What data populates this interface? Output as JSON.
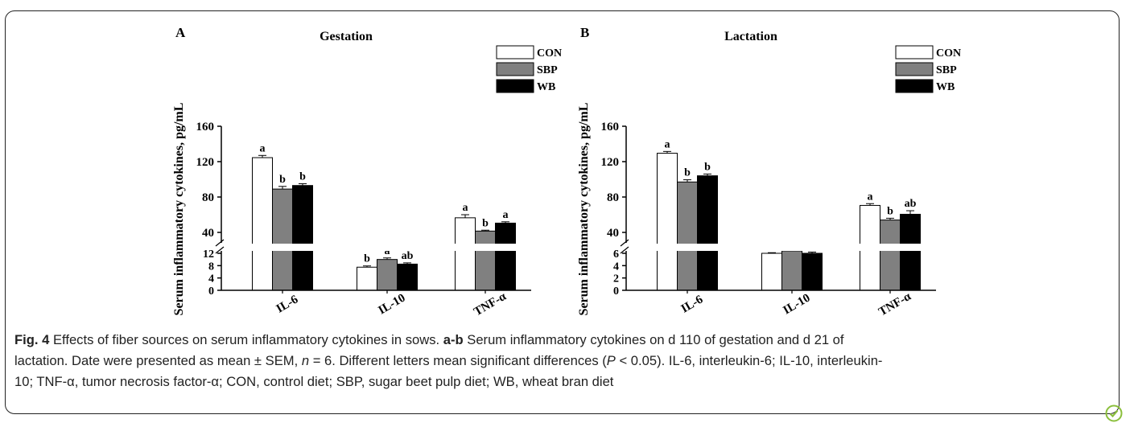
{
  "chart_data": [
    {
      "type": "bar",
      "panel_label": "A",
      "title": "Gestation",
      "ylabel": "Serum inflammatory cytokines, pg/mL",
      "categories": [
        "IL-6",
        "IL-10",
        "TNF-α"
      ],
      "axis_break": true,
      "lower_range": [
        0,
        12
      ],
      "lower_ticks": [
        "0",
        "4",
        "8",
        "12"
      ],
      "upper_range": [
        30,
        160
      ],
      "upper_ticks": [
        "40",
        "80",
        "120",
        "160"
      ],
      "legend_position": "top-right",
      "series": [
        {
          "name": "CON",
          "color": "#ffffff",
          "values": [
            124.5,
            7.5,
            56.5
          ],
          "errors": [
            2.5,
            0.4,
            3.5
          ],
          "letters": [
            "a",
            "b",
            "a"
          ]
        },
        {
          "name": "SBP",
          "color": "#808080",
          "values": [
            89.0,
            10.0,
            41.5
          ],
          "errors": [
            3.0,
            0.5,
            1.0
          ],
          "letters": [
            "b",
            "a",
            "b"
          ]
        },
        {
          "name": "WB",
          "color": "#000000",
          "values": [
            93.0,
            8.5,
            50.5
          ],
          "errors": [
            2.0,
            0.4,
            1.5
          ],
          "letters": [
            "b",
            "ab",
            "a"
          ]
        }
      ]
    },
    {
      "type": "bar",
      "panel_label": "B",
      "title": "Lactation",
      "ylabel": "Serum inflammatory cytokines, pg/mL",
      "categories": [
        "IL-6",
        "IL-10",
        "TNF-α"
      ],
      "axis_break": true,
      "lower_range": [
        0,
        6
      ],
      "lower_ticks": [
        "0",
        "2",
        "4",
        "6"
      ],
      "upper_range": [
        30,
        160
      ],
      "upper_ticks": [
        "40",
        "80",
        "120",
        "160"
      ],
      "legend_position": "top-right",
      "series": [
        {
          "name": "CON",
          "color": "#ffffff",
          "values": [
            129.5,
            6.0,
            70.5
          ],
          "errors": [
            2.0,
            0.1,
            2.0
          ],
          "letters": [
            "a",
            "",
            "a"
          ]
        },
        {
          "name": "SBP",
          "color": "#808080",
          "values": [
            97.0,
            6.4,
            54.0
          ],
          "errors": [
            2.5,
            0.3,
            2.0
          ],
          "letters": [
            "b",
            "",
            "b"
          ]
        },
        {
          "name": "WB",
          "color": "#000000",
          "values": [
            104.0,
            6.0,
            60.5
          ],
          "errors": [
            2.0,
            0.2,
            4.0
          ],
          "letters": [
            "b",
            "",
            "ab"
          ]
        }
      ]
    }
  ],
  "caption": {
    "fig_label": "Fig. 4",
    "title": " Effects of fiber sources on serum inflammatory cytokines in sows. ",
    "range_label": "a-b",
    "body_1": " Serum inflammatory cytokines on d 110 of gestation and d 21 of",
    "body_2": "lactation. Date were presented as mean ± SEM, ",
    "n_var": "n",
    "body_3": " = 6. Different letters mean significant differences (",
    "p_var": "P",
    "body_4": " < 0.05). IL-6, interleukin-6; IL-10, interleukin-",
    "body_5": "10; TNF-α, tumor necrosis factor-α; CON, control diet; SBP, sugar beet pulp diet; WB, wheat bran diet"
  }
}
